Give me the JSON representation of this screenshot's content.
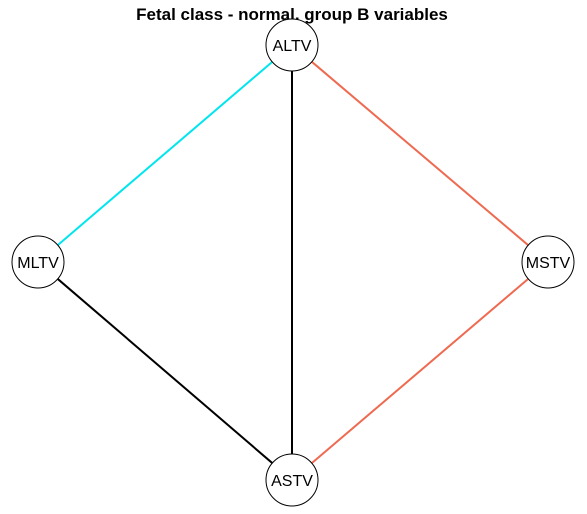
{
  "title": "Fetal class - normal, group B variables",
  "nodes": [
    {
      "id": "ALTV",
      "label": "ALTV"
    },
    {
      "id": "MLTV",
      "label": "MLTV"
    },
    {
      "id": "MSTV",
      "label": "MSTV"
    },
    {
      "id": "ASTV",
      "label": "ASTV"
    }
  ],
  "edges": [
    {
      "from": "ALTV",
      "to": "MLTV",
      "color": "#00e5ee"
    },
    {
      "from": "ALTV",
      "to": "ASTV",
      "color": "#000000"
    },
    {
      "from": "ALTV",
      "to": "MSTV",
      "color": "#ee6a50"
    },
    {
      "from": "MLTV",
      "to": "ASTV",
      "color": "#000000"
    },
    {
      "from": "MSTV",
      "to": "ASTV",
      "color": "#ee6a50"
    }
  ]
}
